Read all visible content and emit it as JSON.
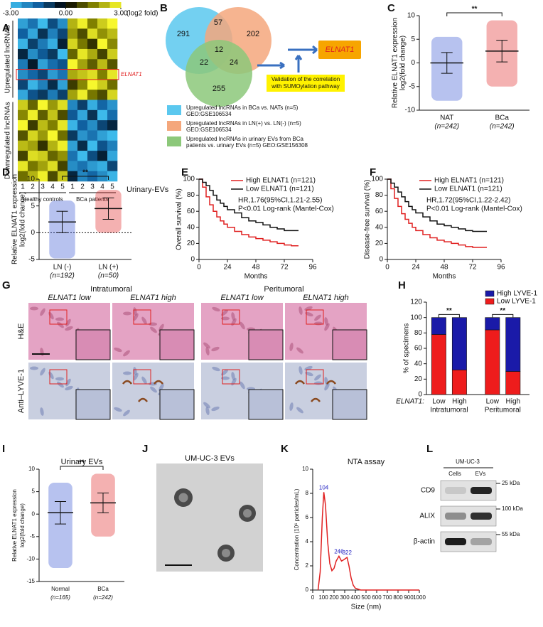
{
  "panel_labels": [
    "A",
    "B",
    "C",
    "D",
    "E",
    "F",
    "G",
    "H",
    "I",
    "J",
    "K",
    "L"
  ],
  "heatmap": {
    "scale_labels": [
      {
        "value": -3,
        "label": "-3.00"
      },
      {
        "value": 0,
        "label": "0.00"
      },
      {
        "value": 3,
        "label": "3.00"
      }
    ],
    "scale_unit": "(log2 fold)",
    "row_groups": [
      "Upregulated lncRNAs",
      "Downregulated lncRNAs"
    ],
    "highlight": "ELNAT1",
    "columns": [
      "1",
      "2",
      "3",
      "4",
      "5",
      "1",
      "2",
      "3",
      "4",
      "5"
    ],
    "column_groups": [
      "Healthy controls",
      "BCa patients"
    ],
    "caption": "Urinary-EVs",
    "values": [
      [
        -2.5,
        -1.8,
        -2.9,
        -1.2,
        -2.2,
        2.1,
        2.8,
        1.5,
        2.4,
        2.9
      ],
      [
        -1.5,
        -2.6,
        -0.8,
        -2.0,
        -1.1,
        1.8,
        0.9,
        2.6,
        1.7,
        2.2
      ],
      [
        -2.8,
        -1.0,
        -1.9,
        -2.7,
        -0.5,
        2.5,
        1.4,
        0.6,
        2.9,
        1.6
      ],
      [
        -0.6,
        -2.2,
        -1.4,
        -0.9,
        -2.9,
        1.2,
        2.7,
        2.0,
        0.8,
        2.4
      ],
      [
        -1.9,
        -0.4,
        -2.5,
        -1.7,
        -1.3,
        2.9,
        1.9,
        1.1,
        2.2,
        1.0
      ],
      [
        -2.2,
        -1.6,
        -1.1,
        -2.4,
        -1.8,
        2.0,
        2.3,
        2.6,
        1.5,
        2.7
      ],
      [
        -1.1,
        -2.8,
        -2.0,
        -0.7,
        -2.5,
        0.7,
        1.6,
        2.9,
        2.4,
        1.3
      ],
      [
        -2.6,
        -1.3,
        -0.9,
        -1.9,
        -1.0,
        1.9,
        2.8,
        1.4,
        0.9,
        2.5
      ],
      [
        2.4,
        1.2,
        2.9,
        1.8,
        2.6,
        -2.1,
        -1.0,
        -2.7,
        -1.6,
        -2.3
      ],
      [
        1.6,
        2.8,
        1.1,
        2.3,
        0.9,
        -1.4,
        -2.6,
        -0.8,
        -2.9,
        -1.7
      ],
      [
        2.9,
        0.7,
        2.2,
        1.5,
        2.7,
        -2.8,
        -1.5,
        -2.2,
        -1.1,
        -0.6
      ],
      [
        1.0,
        2.5,
        1.8,
        2.9,
        1.3,
        -0.9,
        -2.3,
        -1.8,
        -2.5,
        -2.9
      ],
      [
        2.2,
        1.9,
        0.6,
        2.1,
        2.8,
        -2.5,
        -0.7,
        -2.9,
        -1.3,
        -2.0
      ],
      [
        0.8,
        2.6,
        2.4,
        1.2,
        1.7,
        -1.8,
        -2.9,
        -1.2,
        -0.5,
        -2.6
      ],
      [
        2.7,
        1.4,
        1.9,
        2.6,
        0.8,
        -2.2,
        -1.8,
        -2.4,
        -2.7,
        -1.1
      ],
      [
        1.3,
        2.1,
        2.8,
        0.9,
        2.3,
        -0.6,
        -2.1,
        -1.6,
        -2.2,
        -2.8
      ]
    ]
  },
  "venn": {
    "counts": [
      291,
      57,
      202,
      12,
      22,
      24,
      255
    ],
    "result": "ELNAT1",
    "note": [
      "Validation of the correlation",
      "with SUMOylation pathway"
    ],
    "legend": [
      {
        "color": "#5bc8ef",
        "lines": [
          "Upregulated lncRNAs in BCa vs. NATs (n=5)",
          "GEO:GSE106534"
        ]
      },
      {
        "color": "#f4a77c",
        "lines": [
          "Upregulated lncRNAs in LN(+) vs. LN(-) (n=5)",
          "GEO:GSE106534"
        ]
      },
      {
        "color": "#8cc87a",
        "lines": [
          "Upregulated lncRNAs in urinary EVs from BCa",
          "patients vs. urinary EVs (n=5) GEO:GSE156308"
        ]
      }
    ]
  },
  "chart_data": [
    {
      "type": "dot",
      "ylabel": [
        "Relative ELNAT1 expression",
        "log2(fold change)"
      ],
      "categories": [
        "NAT",
        "BCa"
      ],
      "category_notes": [
        "(n=242)",
        "(n=242)"
      ],
      "colors": [
        "#3050d0",
        "#e02020"
      ],
      "mean": [
        0,
        2.5
      ],
      "sd": [
        2.2,
        2.3
      ],
      "range": [
        [
          -8,
          5.5
        ],
        [
          -5,
          9
        ]
      ],
      "ylim": [
        -10,
        10
      ],
      "yticks": [
        -10,
        -5,
        0,
        5,
        10
      ],
      "annotation": "**",
      "zero_line": false
    },
    {
      "type": "dot",
      "ylabel": [
        "Relative ELNAT1 expression",
        "log2(fold change)"
      ],
      "categories": [
        "LN (-)",
        "LN (+)"
      ],
      "category_notes": [
        "(n=192)",
        "(n=50)"
      ],
      "colors": [
        "#3050d0",
        "#e02020"
      ],
      "mean": [
        2,
        4.5
      ],
      "sd": [
        2,
        2
      ],
      "range": [
        [
          -4.8,
          6
        ],
        [
          0,
          8
        ]
      ],
      "ylim": [
        -5,
        10
      ],
      "yticks": [
        -5,
        0,
        5,
        10
      ],
      "annotation": "**",
      "zero_line": true
    },
    {
      "type": "line",
      "step": true,
      "xlabel": "Months",
      "ylabel": [
        "Overall survival (%)"
      ],
      "xlim": [
        0,
        96
      ],
      "xticks": [
        0,
        24,
        48,
        72,
        96
      ],
      "ylim": [
        0,
        100
      ],
      "yticks": [
        0,
        20,
        40,
        60,
        80,
        100
      ],
      "series": [
        {
          "name": "High ELNAT1 (n=121)",
          "color": "#e02020",
          "x": [
            0,
            3,
            6,
            9,
            12,
            15,
            18,
            21,
            24,
            30,
            36,
            42,
            48,
            54,
            60,
            66,
            72,
            78,
            84
          ],
          "values": [
            100,
            90,
            78,
            68,
            60,
            53,
            48,
            44,
            40,
            35,
            31,
            28,
            26,
            24,
            22,
            20,
            18,
            17,
            17
          ]
        },
        {
          "name": "Low ELNAT1 (n=121)",
          "color": "#111111",
          "x": [
            0,
            3,
            6,
            9,
            12,
            15,
            18,
            21,
            24,
            30,
            36,
            42,
            48,
            54,
            60,
            66,
            72,
            78,
            84
          ],
          "values": [
            100,
            96,
            92,
            86,
            80,
            74,
            70,
            66,
            62,
            58,
            52,
            48,
            46,
            43,
            40,
            38,
            36,
            36,
            36
          ]
        }
      ],
      "annotations": [
        "HR,1.76(95%CI,1.21-2.55)",
        "P<0.01 Log-rank (Mantel-Cox)"
      ]
    },
    {
      "type": "line",
      "step": true,
      "xlabel": "Months",
      "ylabel": [
        "Disease-free survival (%)"
      ],
      "xlim": [
        0,
        96
      ],
      "xticks": [
        0,
        24,
        48,
        72,
        96
      ],
      "ylim": [
        0,
        100
      ],
      "yticks": [
        0,
        20,
        40,
        60,
        80,
        100
      ],
      "series": [
        {
          "name": "High ELNAT1 (n=121)",
          "color": "#e02020",
          "x": [
            0,
            3,
            6,
            9,
            12,
            15,
            18,
            21,
            24,
            30,
            36,
            42,
            48,
            54,
            60,
            66,
            72,
            78,
            84
          ],
          "values": [
            100,
            88,
            76,
            66,
            57,
            50,
            45,
            40,
            36,
            31,
            27,
            24,
            22,
            20,
            18,
            16,
            15,
            15,
            15
          ]
        },
        {
          "name": "Low ELNAT1 (n=121)",
          "color": "#111111",
          "x": [
            0,
            3,
            6,
            9,
            12,
            15,
            18,
            21,
            24,
            30,
            36,
            42,
            48,
            54,
            60,
            66,
            72,
            78,
            84
          ],
          "values": [
            100,
            95,
            90,
            84,
            78,
            72,
            66,
            62,
            58,
            53,
            48,
            44,
            42,
            40,
            38,
            36,
            35,
            35,
            35
          ]
        }
      ],
      "annotations": [
        "HR,1.72(95%CI,1.22-2.42)",
        "P<0.01 Log-rank (Mantel-Cox)"
      ]
    },
    {
      "type": "bar",
      "stacked": true,
      "ylabel": [
        "% of specimens"
      ],
      "categories": [
        "Low",
        "High",
        "Low",
        "High"
      ],
      "category_prefix": "ELNAT1:",
      "groups": [
        "Intratumoral",
        "Peritumoral"
      ],
      "annotations": [
        "**",
        "**"
      ],
      "ylim": [
        0,
        120
      ],
      "yticks": [
        0,
        20,
        40,
        60,
        80,
        100,
        120
      ],
      "series": [
        {
          "name": "Low LYVE-1",
          "color": "#ee1c1c",
          "values": [
            78,
            32,
            84,
            30
          ]
        },
        {
          "name": "High LYVE-1",
          "color": "#1a1aa8",
          "values": [
            22,
            68,
            16,
            70
          ]
        }
      ]
    },
    {
      "type": "dot",
      "title": "Urinary EVs",
      "ylabel": [
        "Relative ELNAT1 expression",
        "log2(fold change)"
      ],
      "categories": [
        "Normal",
        "BCa"
      ],
      "category_notes": [
        "(n=165)",
        "(n=242)"
      ],
      "colors": [
        "#3050d0",
        "#e02020"
      ],
      "mean": [
        0.3,
        2.5
      ],
      "sd": [
        2.5,
        2.2
      ],
      "range": [
        [
          -12,
          7
        ],
        [
          -5,
          9
        ]
      ],
      "ylim": [
        -15,
        10
      ],
      "yticks": [
        -15,
        -10,
        -5,
        0,
        5,
        10
      ],
      "annotation": "**",
      "zero_line": false
    },
    {
      "type": "line",
      "step": false,
      "title": "NTA assay",
      "xlabel": "Size (nm)",
      "ylabel": [
        "Concentration (10⁶ particles/mL)"
      ],
      "xlim": [
        0,
        1000
      ],
      "xticks": [
        0,
        100,
        200,
        300,
        400,
        500,
        600,
        700,
        800,
        900,
        1000
      ],
      "ylim": [
        0,
        10
      ],
      "yticks": [
        0,
        2,
        4,
        6,
        8,
        10
      ],
      "series": [
        {
          "color": "#e02020",
          "x": [
            50,
            70,
            90,
            104,
            120,
            140,
            160,
            180,
            200,
            220,
            246,
            270,
            290,
            322,
            340,
            360,
            380,
            400,
            450,
            500,
            600,
            700,
            800,
            900,
            1000
          ],
          "values": [
            0,
            1.5,
            6,
            8.1,
            7,
            4,
            2.2,
            1.6,
            1.8,
            2.4,
            2.8,
            2.4,
            2.5,
            2.7,
            2.0,
            1.0,
            0.4,
            0.15,
            0,
            0,
            0,
            0,
            0,
            0,
            0
          ]
        }
      ],
      "peaks": [
        104,
        246,
        322
      ]
    }
  ],
  "histology": {
    "groups": [
      "Intratumoral",
      "Peritumoral"
    ],
    "columns": [
      "ELNAT1 low",
      "ELNAT1 high",
      "ELNAT1 low",
      "ELNAT1 high"
    ],
    "rows": [
      "H&E",
      "Anti–LYVE-1"
    ]
  },
  "em": {
    "title": "UM-UC-3 EVs"
  },
  "western": {
    "title": "UM-UC-3",
    "lanes": [
      "Cells",
      "EVs"
    ],
    "bands": [
      "CD9",
      "ALIX",
      "β-actin"
    ],
    "markers": [
      "25 kDa",
      "100 kDa",
      "55 kDa"
    ],
    "intensity": [
      [
        0.12,
        0.9
      ],
      [
        0.4,
        0.85
      ],
      [
        0.95,
        0.3
      ]
    ]
  }
}
